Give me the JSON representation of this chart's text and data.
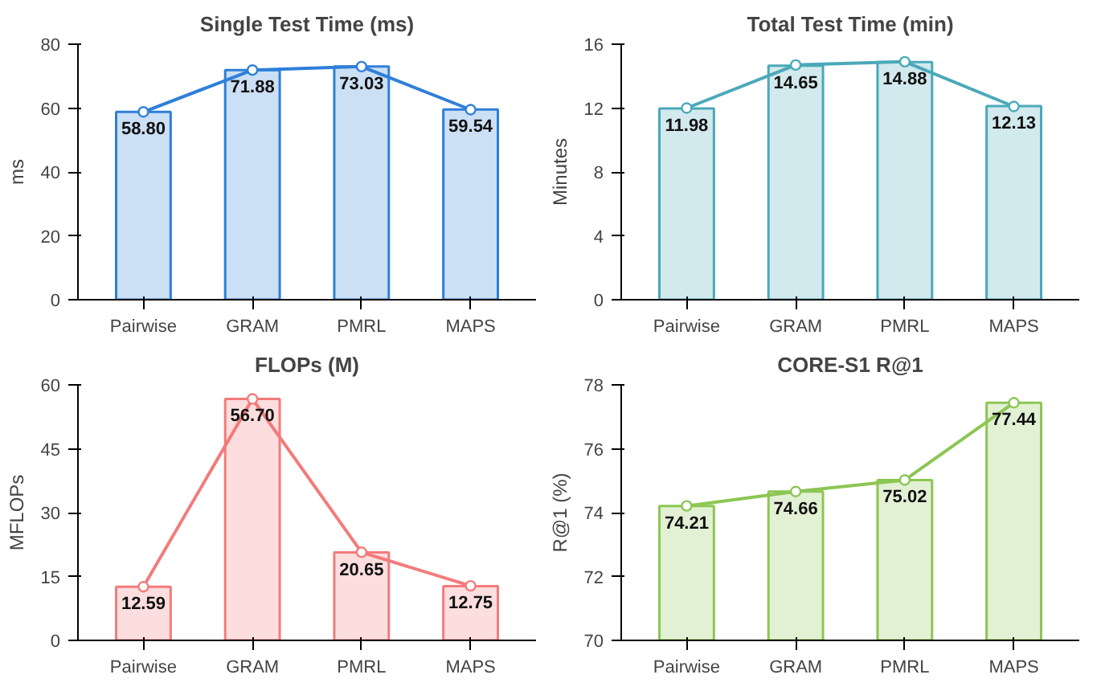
{
  "chart_data": [
    {
      "type": "bar",
      "title": "Single Test Time (ms)",
      "ylabel": "ms",
      "categories": [
        "Pairwise",
        "GRAM",
        "PMRL",
        "MAPS"
      ],
      "series": [
        {
          "color": "#2e7fd9",
          "values": [
            58.8,
            71.88,
            73.03,
            59.54
          ],
          "value_labels": [
            "58.80",
            "71.88",
            "73.03",
            "59.54"
          ]
        },
        {
          "type": "line",
          "color": "#2e7fd9",
          "values": [
            58.8,
            71.9,
            73.0,
            59.5
          ]
        }
      ],
      "ylim": [
        0,
        80
      ],
      "yticks": [
        0,
        20,
        40,
        60,
        80
      ],
      "marker": "circle",
      "grid": false
    },
    {
      "type": "bar",
      "title": "Total Test Time (min)",
      "ylabel": "Minutes",
      "categories": [
        "Pairwise",
        "GRAM",
        "PMRL",
        "MAPS"
      ],
      "series": [
        {
          "color": "#4aa9b9",
          "values": [
            11.98,
            14.65,
            14.88,
            12.13
          ],
          "value_labels": [
            "11.98",
            "14.65",
            "14.88",
            "12.13"
          ]
        },
        {
          "type": "line",
          "color": "#4aa9b9",
          "values": [
            12.0,
            14.7,
            14.9,
            12.1
          ]
        }
      ],
      "ylim": [
        0,
        16
      ],
      "yticks": [
        0,
        4,
        8,
        12,
        16
      ],
      "marker": "circle",
      "grid": false
    },
    {
      "type": "bar",
      "title": "FLOPs (M)",
      "ylabel": "MFLOPs",
      "categories": [
        "Pairwise",
        "GRAM",
        "PMRL",
        "MAPS"
      ],
      "series": [
        {
          "color": "#f37b7b",
          "values": [
            12.59,
            56.7,
            20.65,
            12.75
          ],
          "value_labels": [
            "12.59",
            "56.70",
            "20.65",
            "12.75"
          ]
        },
        {
          "type": "line",
          "color": "#f37b7b",
          "values": [
            12.6,
            56.7,
            20.7,
            12.8
          ]
        }
      ],
      "ylim": [
        0,
        60
      ],
      "yticks": [
        0,
        15,
        30,
        45,
        60
      ],
      "marker": "circle",
      "grid": false
    },
    {
      "type": "bar",
      "title": "CORE-S1 R@1",
      "ylabel": "R@1 (%)",
      "categories": [
        "Pairwise",
        "GRAM",
        "PMRL",
        "MAPS"
      ],
      "series": [
        {
          "color": "#8cc653",
          "values": [
            74.21,
            74.66,
            75.02,
            77.44
          ],
          "value_labels": [
            "74.21",
            "74.66",
            "75.02",
            "77.44"
          ]
        },
        {
          "type": "line",
          "color": "#8cc653",
          "values": [
            74.21,
            74.66,
            75.02,
            77.44
          ]
        }
      ],
      "ylim": [
        70,
        78
      ],
      "yticks": [
        70,
        72,
        74,
        76,
        78
      ],
      "marker": "circle",
      "grid": false
    }
  ]
}
